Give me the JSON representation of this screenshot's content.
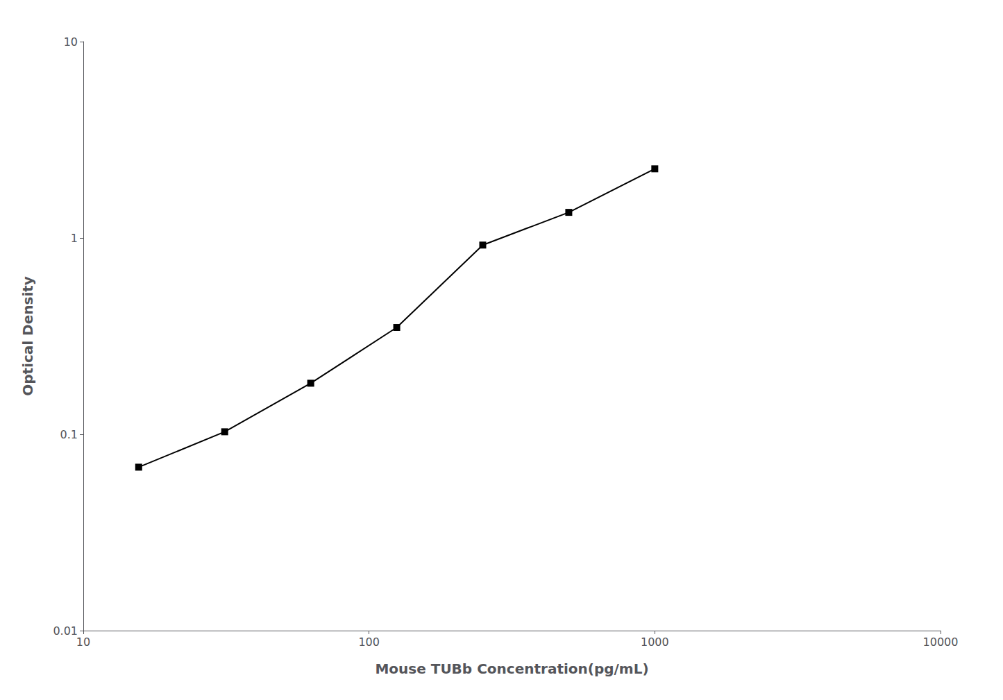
{
  "chart_data": {
    "type": "line",
    "x": [
      15.625,
      31.25,
      62.5,
      125,
      250,
      500,
      1000
    ],
    "values": [
      0.068,
      0.103,
      0.182,
      0.35,
      0.92,
      1.35,
      2.25
    ],
    "xlabel": "Mouse TUBb Concentration(pg/mL)",
    "ylabel": "Optical Density",
    "xlim": [
      10,
      10000
    ],
    "ylim": [
      0.01,
      10
    ],
    "xticks": [
      10,
      100,
      1000,
      10000
    ],
    "yticks": [
      0.01,
      0.1,
      1,
      10
    ],
    "log": true,
    "grid": false,
    "color": "#000000",
    "marker": "square",
    "line_style": "solid"
  }
}
